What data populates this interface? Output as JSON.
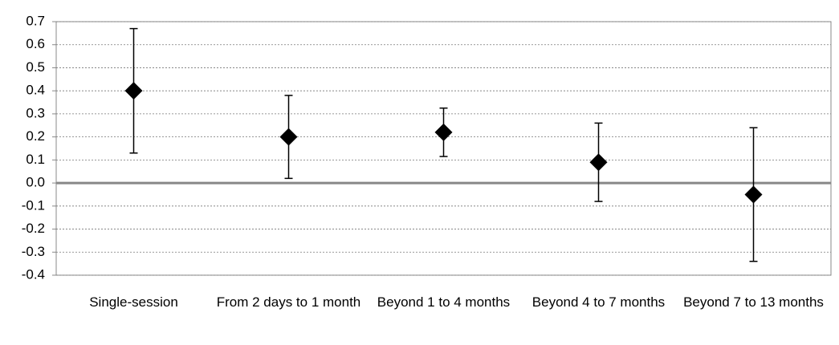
{
  "chart_data": {
    "type": "errorbar",
    "categories": [
      "Single-session",
      "From 2 days to 1 month",
      "Beyond 1 to 4 months",
      "Beyond 4 to 7 months",
      "Beyond 7 to 13 months"
    ],
    "values": [
      0.4,
      0.2,
      0.22,
      0.09,
      -0.05
    ],
    "errors": [
      0.27,
      0.18,
      0.105,
      0.17,
      0.29
    ],
    "color": "#000000",
    "ylim": [
      -0.4,
      0.7
    ],
    "yticks": [
      -0.4,
      -0.3,
      -0.2,
      -0.1,
      {
        "value": 0,
        "label": "0.0"
      },
      0.1,
      0.2,
      0.3,
      0.4,
      0.5,
      0.6,
      0.7
    ],
    "grid": true
  }
}
